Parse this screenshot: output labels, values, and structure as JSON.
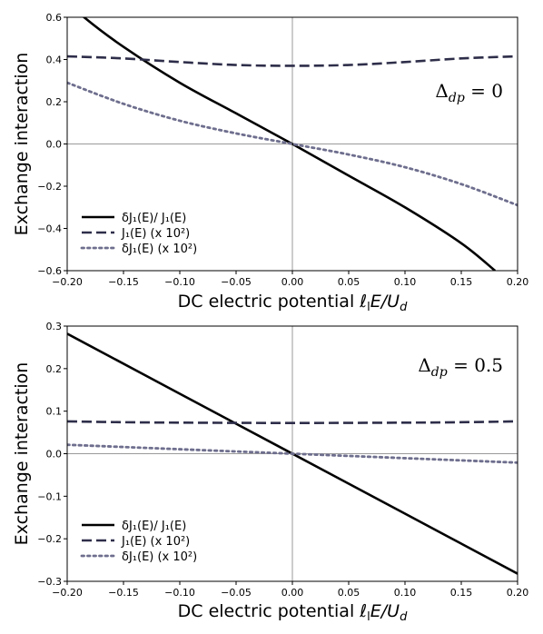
{
  "chart_data": [
    {
      "type": "line",
      "xlabel": "DC electric potential ℓₗE/Uᵈ",
      "xlabel_parts": {
        "base": "DC electric potential ",
        "l": "ℓ",
        "l_sub": "l",
        "E": "E/U",
        "U_sub": "d"
      },
      "ylabel": "Exchange interaction",
      "xlim": [
        -0.2,
        0.2
      ],
      "ylim": [
        -0.6,
        0.6
      ],
      "xticks": [
        -0.2,
        -0.15,
        -0.1,
        -0.05,
        0.0,
        0.05,
        0.1,
        0.15,
        0.2
      ],
      "xtick_labels": [
        "−0.20",
        "−0.15",
        "−0.10",
        "−0.05",
        "0.00",
        "0.05",
        "0.10",
        "0.15",
        "0.20"
      ],
      "yticks": [
        -0.6,
        -0.4,
        -0.2,
        0.0,
        0.2,
        0.4,
        0.6
      ],
      "ytick_labels": [
        "−0.6",
        "−0.4",
        "−0.2",
        "0.0",
        "0.2",
        "0.4",
        "0.6"
      ],
      "annotation": {
        "base": "Δ",
        "sub": "dp",
        "rest": " = 0",
        "position": "top-right"
      },
      "legend_position": "bottom-left",
      "series": [
        {
          "name": "δJ₁(E)/ J₁(E)",
          "style": "solid",
          "color": "#000000",
          "x": [
            -0.2,
            -0.185,
            -0.15,
            -0.1,
            -0.05,
            0.0,
            0.05,
            0.1,
            0.15,
            0.18
          ],
          "y": [
            0.68,
            0.6,
            0.46,
            0.29,
            0.145,
            0.0,
            -0.15,
            -0.3,
            -0.47,
            -0.6
          ]
        },
        {
          "name": "J₁(E) (x 10²)",
          "style": "dashed",
          "color": "#2e2e4a",
          "x": [
            -0.2,
            -0.15,
            -0.1,
            -0.05,
            0.0,
            0.05,
            0.1,
            0.15,
            0.2
          ],
          "y": [
            0.415,
            0.405,
            0.388,
            0.374,
            0.37,
            0.374,
            0.388,
            0.405,
            0.415
          ]
        },
        {
          "name": "δJ₁(E) (x 10²)",
          "style": "dotted",
          "color": "#6e6e8e",
          "x": [
            -0.2,
            -0.15,
            -0.1,
            -0.05,
            0.0,
            0.05,
            0.1,
            0.15,
            0.2
          ],
          "y": [
            0.29,
            0.19,
            0.11,
            0.05,
            0.0,
            -0.05,
            -0.11,
            -0.19,
            -0.29
          ]
        }
      ]
    },
    {
      "type": "line",
      "xlabel": "DC electric potential ℓₗE/Uᵈ",
      "xlabel_parts": {
        "base": "DC electric potential ",
        "l": "ℓ",
        "l_sub": "l",
        "E": "E/U",
        "U_sub": "d"
      },
      "ylabel": "Exchange interaction",
      "xlim": [
        -0.2,
        0.2
      ],
      "ylim": [
        -0.3,
        0.3
      ],
      "xticks": [
        -0.2,
        -0.15,
        -0.1,
        -0.05,
        0.0,
        0.05,
        0.1,
        0.15,
        0.2
      ],
      "xtick_labels": [
        "−0.20",
        "−0.15",
        "−0.10",
        "−0.05",
        "0.00",
        "0.05",
        "0.10",
        "0.15",
        "0.20"
      ],
      "yticks": [
        -0.3,
        -0.2,
        -0.1,
        0.0,
        0.1,
        0.2,
        0.3
      ],
      "ytick_labels": [
        "−0.3",
        "−0.2",
        "−0.1",
        "0.0",
        "0.1",
        "0.2",
        "0.3"
      ],
      "annotation": {
        "base": "Δ",
        "sub": "dp",
        "rest": " = 0.5",
        "position": "top-right"
      },
      "legend_position": "bottom-left",
      "series": [
        {
          "name": "δJ₁(E)/ J₁(E)",
          "style": "solid",
          "color": "#000000",
          "x": [
            -0.2,
            -0.1,
            0.0,
            0.1,
            0.2
          ],
          "y": [
            0.282,
            0.141,
            0.0,
            -0.141,
            -0.282
          ]
        },
        {
          "name": "J₁(E) (x 10²)",
          "style": "dashed",
          "color": "#2e2e4a",
          "x": [
            -0.2,
            -0.15,
            -0.1,
            -0.05,
            0.0,
            0.05,
            0.1,
            0.15,
            0.2
          ],
          "y": [
            0.076,
            0.074,
            0.073,
            0.0725,
            0.0722,
            0.0725,
            0.073,
            0.074,
            0.076
          ]
        },
        {
          "name": "δJ₁(E) (x 10²)",
          "style": "dotted",
          "color": "#6e6e8e",
          "x": [
            -0.2,
            -0.1,
            0.0,
            0.1,
            0.2
          ],
          "y": [
            0.021,
            0.0105,
            0.0,
            -0.0105,
            -0.021
          ]
        }
      ]
    }
  ]
}
